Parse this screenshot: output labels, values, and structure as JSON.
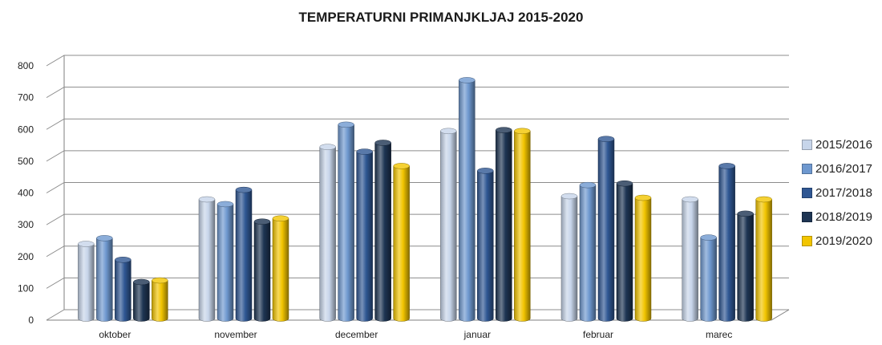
{
  "chart_data": {
    "type": "bar",
    "title": "TEMPERATURNI PRIMANJKLJAJ 2015-2020",
    "xlabel": "",
    "ylabel": "",
    "ylim": [
      0,
      800
    ],
    "yticks": [
      0,
      100,
      200,
      300,
      400,
      500,
      600,
      700,
      800
    ],
    "grid": true,
    "legend_position": "right",
    "categories": [
      "oktober",
      "november",
      "december",
      "januar",
      "februar",
      "marec"
    ],
    "series": [
      {
        "name": "2015/2016",
        "color": "#c7d5ea",
        "values": [
          260,
          400,
          565,
          615,
          410,
          400
        ]
      },
      {
        "name": "2016/2017",
        "color": "#6e98cf",
        "values": [
          278,
          385,
          635,
          775,
          445,
          280
        ]
      },
      {
        "name": "2017/2018",
        "color": "#2f5793",
        "values": [
          210,
          430,
          550,
          490,
          590,
          505
        ]
      },
      {
        "name": "2018/2019",
        "color": "#1e3553",
        "values": [
          140,
          330,
          578,
          618,
          450,
          355
        ]
      },
      {
        "name": "2019/2020",
        "color": "#f2c500",
        "values": [
          145,
          340,
          505,
          615,
          405,
          400
        ]
      }
    ]
  }
}
